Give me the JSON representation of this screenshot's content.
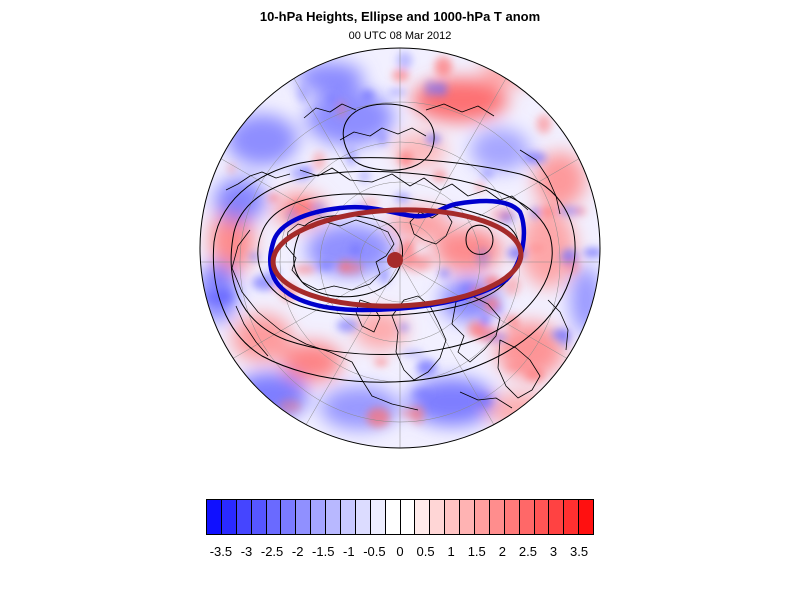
{
  "header": {
    "title": "10-hPa Heights, Ellipse and 1000-hPa T anom",
    "subtitle": "00 UTC 08 Mar 2012"
  },
  "map": {
    "projection": "polar stereographic (north pole)",
    "contour_color": "#000000",
    "coastline_color": "#000000",
    "ellipse_color": "#a52a2a",
    "vortex_edge_color": "#0000cd",
    "center_marker_color": "#a52a2a"
  },
  "colorbar": {
    "labels": [
      "-3.5",
      "-3",
      "-2.5",
      "-2",
      "-1.5",
      "-1",
      "-0.5",
      "0",
      "0.5",
      "1",
      "1.5",
      "2",
      "2.5",
      "3",
      "3.5"
    ],
    "colors": [
      "#1010ff",
      "#2a2aff",
      "#4545ff",
      "#5656ff",
      "#6a6aff",
      "#7b7bff",
      "#9090ff",
      "#a5a5ff",
      "#b8b8ff",
      "#c9c9ff",
      "#dcdcff",
      "#ededff",
      "#ffffff",
      "#ffffff",
      "#ffeaea",
      "#ffd6d6",
      "#ffc4c4",
      "#ffb3b3",
      "#ff9f9f",
      "#ff8d8d",
      "#ff7a7a",
      "#ff6868",
      "#ff5555",
      "#ff4242",
      "#ff3030",
      "#ff1010"
    ]
  }
}
